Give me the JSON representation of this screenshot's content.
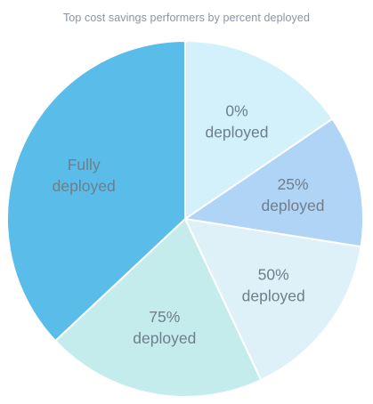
{
  "chart_data": {
    "type": "pie",
    "title": "Top cost savings performers by percent deployed",
    "start_angle_deg": 0,
    "direction": "clockwise",
    "slices": [
      {
        "label_lines": [
          "0%",
          "deployed"
        ],
        "value": 15.5,
        "color": "#d2f1fb"
      },
      {
        "label_lines": [
          "25%",
          "deployed"
        ],
        "value": 12.0,
        "color": "#afd4f5"
      },
      {
        "label_lines": [
          "50%",
          "deployed"
        ],
        "value": 15.5,
        "color": "#dff1f8"
      },
      {
        "label_lines": [
          "75%",
          "deployed"
        ],
        "value": 20.0,
        "color": "#c5eced"
      },
      {
        "label_lines": [
          "Fully",
          "deployed"
        ],
        "value": 37.0,
        "color": "#59bce9"
      }
    ]
  }
}
